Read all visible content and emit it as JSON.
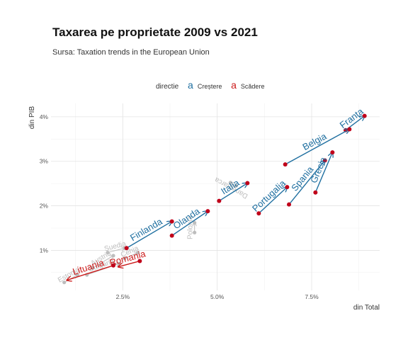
{
  "header": {
    "title": "Taxarea pe proprietate 2009 vs 2021",
    "subtitle": "Sursa: Taxation trends in the European Union"
  },
  "legend": {
    "title": "directie",
    "key_glyph": "a",
    "items": [
      {
        "label": "Creștere",
        "color": "#1f6fa0"
      },
      {
        "label": "Scădere",
        "color": "#cc1a1a"
      }
    ]
  },
  "chart_data": {
    "type": "scatter",
    "title": "Taxarea pe proprietate 2009 vs 2021",
    "subtitle": "Sursa: Taxation trends in the European Union",
    "xlabel": "din Total",
    "ylabel": "din PIB",
    "xlim": [
      0.6,
      9.3
    ],
    "ylim": [
      0.1,
      4.3
    ],
    "x_ticks": [
      2.5,
      5.0,
      7.5
    ],
    "x_tick_labels": [
      "2.5%",
      "5.0%",
      "7.5%"
    ],
    "y_ticks": [
      1,
      2,
      3,
      4
    ],
    "y_tick_labels": [
      "1%",
      "2%",
      "3%",
      "4%"
    ],
    "grid": true,
    "legend_position": "top",
    "colors": {
      "increase": "#1f6fa0",
      "decrease": "#cc1a1a",
      "other": "#bdbdbd",
      "point": "#c0001a"
    },
    "highlighted": [
      {
        "label": "Franța",
        "direction": "increase",
        "x0": 8.4,
        "y0": 3.7,
        "x1": 8.9,
        "y1": 4.02
      },
      {
        "label": "Belgia",
        "direction": "increase",
        "x0": 6.8,
        "y0": 2.93,
        "x1": 8.5,
        "y1": 3.72
      },
      {
        "label": "Spania",
        "direction": "increase",
        "x0": 6.9,
        "y0": 2.03,
        "x1": 7.85,
        "y1": 3.02
      },
      {
        "label": "Grecia",
        "direction": "increase",
        "x0": 7.6,
        "y0": 2.3,
        "x1": 8.05,
        "y1": 3.2
      },
      {
        "label": "Portugalia",
        "direction": "increase",
        "x0": 6.1,
        "y0": 1.83,
        "x1": 6.85,
        "y1": 2.42
      },
      {
        "label": "Italia",
        "direction": "increase",
        "x0": 5.05,
        "y0": 2.11,
        "x1": 5.8,
        "y1": 2.51
      },
      {
        "label": "Olanda",
        "direction": "increase",
        "x0": 3.8,
        "y0": 1.33,
        "x1": 4.75,
        "y1": 1.88
      },
      {
        "label": "Finlanda",
        "direction": "increase",
        "x0": 2.6,
        "y0": 1.05,
        "x1": 3.8,
        "y1": 1.65
      },
      {
        "label": "Lituania",
        "direction": "decrease",
        "x0": 2.25,
        "y0": 0.66,
        "x1": 1.02,
        "y1": 0.33
      },
      {
        "label": "Romania",
        "direction": "decrease",
        "x0": 2.95,
        "y0": 0.76,
        "x1": 2.38,
        "y1": 0.63
      }
    ],
    "background": [
      {
        "label": "Danemarca",
        "x0": 5.5,
        "y0": 2.45,
        "x1": 5.35,
        "y1": 2.52
      },
      {
        "label": "Polonia",
        "x0": 4.4,
        "y0": 1.4,
        "x1": 4.4,
        "y1": 1.62
      },
      {
        "label": "Austria",
        "x0": 1.7,
        "y0": 0.6,
        "x1": 2.25,
        "y1": 0.88
      },
      {
        "label": "Suedia",
        "x0": 2.1,
        "y0": 0.95,
        "x1": 2.55,
        "y1": 1.05
      },
      {
        "label": "Bulgaria",
        "x0": 1.55,
        "y0": 0.45,
        "x1": 2.4,
        "y1": 0.7
      },
      {
        "label": "Cehia",
        "x0": 2.55,
        "y0": 0.82,
        "x1": 2.9,
        "y1": 0.95
      },
      {
        "label": "Estonia",
        "x0": 0.95,
        "y0": 0.28,
        "x1": 1.3,
        "y1": 0.45
      }
    ]
  }
}
